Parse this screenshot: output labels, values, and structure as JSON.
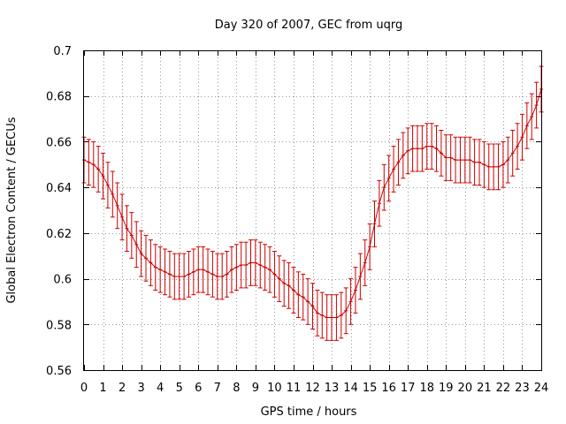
{
  "chart_data": {
    "type": "line",
    "title": "Day 320 of 2007, GEC from uqrg",
    "xlabel": "GPS time / hours",
    "ylabel": "Global Electron Content / GECUs",
    "xlim": [
      0,
      24
    ],
    "ylim": [
      0.56,
      0.7
    ],
    "x_ticks": [
      0,
      1,
      2,
      3,
      4,
      5,
      6,
      7,
      8,
      9,
      10,
      11,
      12,
      13,
      14,
      15,
      16,
      17,
      18,
      19,
      20,
      21,
      22,
      23,
      24
    ],
    "y_ticks": [
      0.56,
      0.58,
      0.6,
      0.62,
      0.64,
      0.66,
      0.68,
      0.7
    ],
    "y_tick_labels": [
      "0.56",
      "0.58",
      "0.6",
      "0.62",
      "0.64",
      "0.66",
      "0.68",
      "0.7"
    ],
    "grid": true,
    "error_bar_half_width": 0.01,
    "series_color": "#cc0000",
    "series": [
      {
        "x": [
          0.0,
          0.25,
          0.5,
          0.75,
          1.0,
          1.25,
          1.5,
          1.75,
          2.0,
          2.25,
          2.5,
          2.75,
          3.0,
          3.25,
          3.5,
          3.75,
          4.0,
          4.25,
          4.5,
          4.75,
          5.0,
          5.25,
          5.5,
          5.75,
          6.0,
          6.25,
          6.5,
          6.75,
          7.0,
          7.25,
          7.5,
          7.75,
          8.0,
          8.25,
          8.5,
          8.75,
          9.0,
          9.25,
          9.5,
          9.75,
          10.0,
          10.25,
          10.5,
          10.75,
          11.0,
          11.25,
          11.5,
          11.75,
          12.0,
          12.25,
          12.5,
          12.75,
          13.0,
          13.25,
          13.5,
          13.75,
          14.0,
          14.25,
          14.5,
          14.75,
          15.0,
          15.25,
          15.5,
          15.75,
          16.0,
          16.25,
          16.5,
          16.75,
          17.0,
          17.25,
          17.5,
          17.75,
          18.0,
          18.25,
          18.5,
          18.75,
          19.0,
          19.25,
          19.5,
          19.75,
          20.0,
          20.25,
          20.5,
          20.75,
          21.0,
          21.25,
          21.5,
          21.75,
          22.0,
          22.25,
          22.5,
          22.75,
          23.0,
          23.25,
          23.5,
          23.75,
          24.0
        ],
        "y": [
          0.652,
          0.651,
          0.65,
          0.648,
          0.645,
          0.641,
          0.637,
          0.632,
          0.627,
          0.622,
          0.619,
          0.615,
          0.611,
          0.609,
          0.607,
          0.605,
          0.604,
          0.603,
          0.602,
          0.601,
          0.601,
          0.601,
          0.602,
          0.603,
          0.604,
          0.604,
          0.603,
          0.602,
          0.601,
          0.601,
          0.602,
          0.604,
          0.605,
          0.606,
          0.606,
          0.607,
          0.607,
          0.606,
          0.605,
          0.604,
          0.602,
          0.6,
          0.598,
          0.597,
          0.595,
          0.593,
          0.592,
          0.59,
          0.588,
          0.585,
          0.584,
          0.583,
          0.583,
          0.583,
          0.584,
          0.586,
          0.59,
          0.595,
          0.601,
          0.607,
          0.614,
          0.624,
          0.633,
          0.64,
          0.644,
          0.648,
          0.651,
          0.654,
          0.656,
          0.657,
          0.657,
          0.657,
          0.658,
          0.658,
          0.657,
          0.655,
          0.653,
          0.653,
          0.652,
          0.652,
          0.652,
          0.652,
          0.651,
          0.651,
          0.65,
          0.649,
          0.649,
          0.649,
          0.65,
          0.652,
          0.655,
          0.658,
          0.662,
          0.667,
          0.671,
          0.676,
          0.683
        ]
      }
    ]
  }
}
